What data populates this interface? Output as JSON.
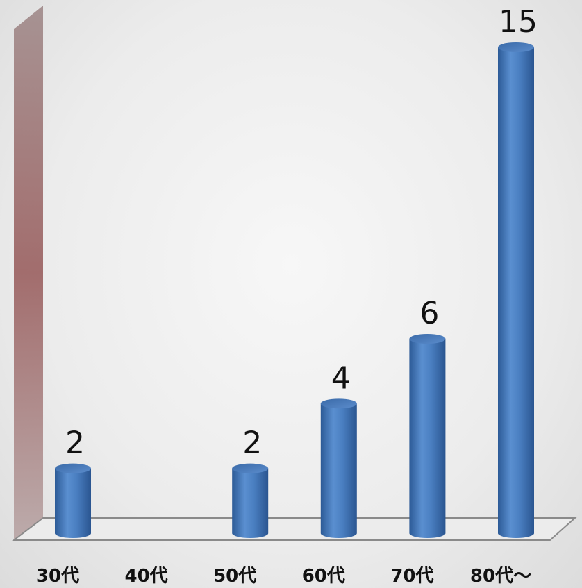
{
  "chart_data": {
    "type": "bar",
    "style": "3d-cylinder",
    "categories": [
      "30代",
      "40代",
      "50代",
      "60代",
      "70代",
      "80代～"
    ],
    "values": [
      2,
      0,
      2,
      4,
      6,
      15
    ],
    "data_labels": [
      "2",
      "",
      "2",
      "4",
      "6",
      "15"
    ],
    "title": "",
    "xlabel": "",
    "ylabel": "",
    "ylim": [
      0,
      15.5
    ],
    "grid": false,
    "legend": "none",
    "colors": {
      "bar": "#4a7fc1",
      "bar_dark": "#2c5a96",
      "bar_light": "#7aa6dc",
      "wall": "#9c6f6f",
      "floor_line": "#8a8a8a"
    }
  }
}
